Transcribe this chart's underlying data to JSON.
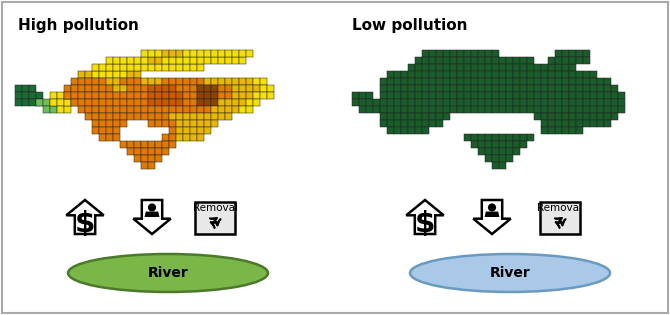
{
  "title_left": "High pollution",
  "title_right": "Low pollution",
  "river_left_label": "River",
  "river_right_label": "River",
  "removal_label": "Removal",
  "river_left_color": "#7ab648",
  "river_left_edge": "#4a7a2a",
  "river_right_color": "#aac8e8",
  "river_right_edge": "#6a9abf",
  "bg_color": "#ffffff",
  "border_color": "#aaaaaa",
  "font_size_title": 11,
  "font_size_river": 10,
  "font_size_removal": 7.5
}
